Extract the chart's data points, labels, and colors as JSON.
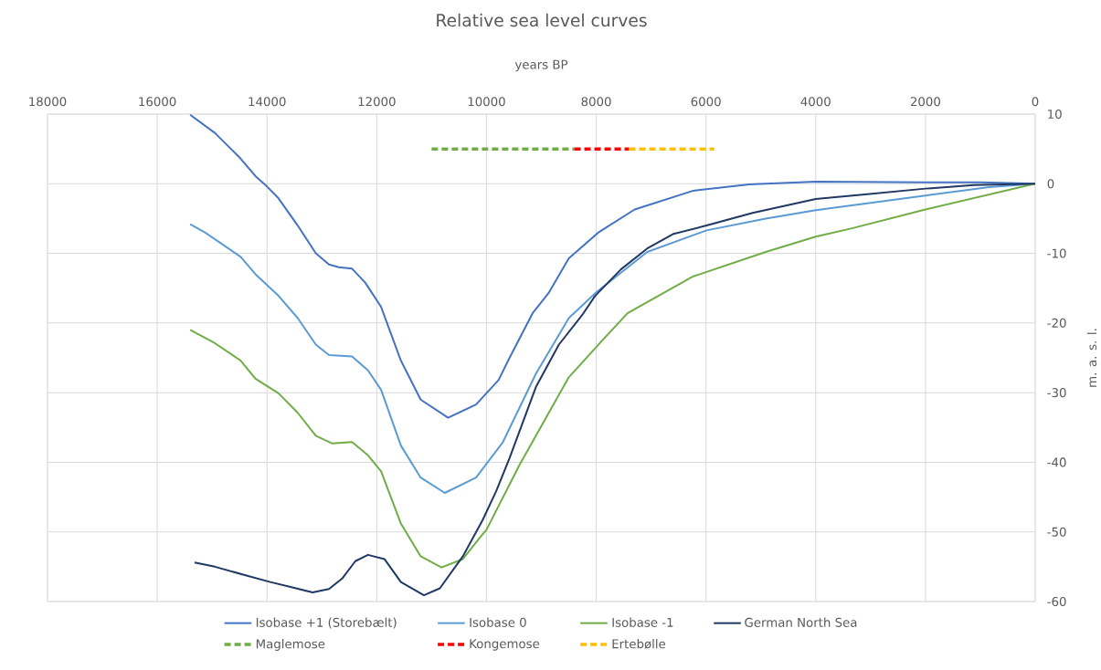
{
  "chart_data": {
    "type": "line",
    "title": "Relative sea level curves",
    "xlabel": "years BP",
    "ylabel": "m. a. s. l.",
    "xlim": [
      18000,
      0
    ],
    "xticks": [
      18000,
      16000,
      14000,
      12000,
      10000,
      8000,
      6000,
      4000,
      2000,
      0
    ],
    "ylim": [
      -60,
      10
    ],
    "yticks": [
      -60,
      -50,
      -40,
      -30,
      -20,
      -10,
      0,
      10
    ],
    "grid": true,
    "legend": "bottom",
    "marker": "none",
    "series": [
      {
        "name": "Isobase +1 (Storebælt)",
        "color": "#4472c4",
        "line_style": "solid",
        "x": [
          15400,
          14950,
          14480,
          14210,
          14000,
          13790,
          13440,
          13110,
          12870,
          12690,
          12450,
          12210,
          11920,
          11560,
          11200,
          10700,
          10190,
          9780,
          9580,
          9160,
          8860,
          8500,
          7960,
          7300,
          6230,
          5210,
          4000,
          2000,
          1000,
          0
        ],
        "values": [
          9.9,
          7.3,
          3.6,
          1.1,
          -0.4,
          -2.1,
          -6.0,
          -10.0,
          -11.6,
          -12.0,
          -12.2,
          -14.2,
          -17.7,
          -25.4,
          -31.0,
          -33.6,
          -31.7,
          -28.2,
          -25.0,
          -18.6,
          -15.6,
          -10.7,
          -7.0,
          -3.7,
          -1.0,
          -0.1,
          0.3,
          0.2,
          0.2,
          0
        ]
      },
      {
        "name": "Isobase 0",
        "color": "#5b9bd5",
        "line_style": "solid",
        "x": [
          15400,
          15130,
          14480,
          14210,
          13790,
          13440,
          13110,
          12870,
          12450,
          12160,
          11920,
          11560,
          11200,
          10760,
          10190,
          9700,
          9100,
          8500,
          8000,
          7070,
          5990,
          4910,
          4000,
          2000,
          840,
          0
        ],
        "values": [
          -5.8,
          -7.0,
          -10.5,
          -13.0,
          -16.1,
          -19.3,
          -23.1,
          -24.6,
          -24.8,
          -26.8,
          -29.6,
          -37.6,
          -42.2,
          -44.4,
          -42.2,
          -37.1,
          -27.3,
          -19.3,
          -15.6,
          -9.8,
          -6.7,
          -5.0,
          -3.8,
          -1.7,
          -0.5,
          0
        ]
      },
      {
        "name": "Isobase -1",
        "color": "#70ad47",
        "line_style": "solid",
        "x": [
          15400,
          14950,
          14480,
          14210,
          13790,
          13440,
          13110,
          12810,
          12450,
          12160,
          11920,
          11560,
          11200,
          10820,
          10430,
          10130,
          10000,
          9400,
          8500,
          7900,
          7430,
          6230,
          4910,
          4000,
          3340,
          2000,
          0
        ],
        "values": [
          -21.0,
          -22.9,
          -25.4,
          -28.0,
          -30.1,
          -32.9,
          -36.2,
          -37.3,
          -37.1,
          -39.0,
          -41.3,
          -48.8,
          -53.5,
          -55.1,
          -53.9,
          -50.9,
          -49.7,
          -40.4,
          -27.8,
          -22.6,
          -18.6,
          -13.3,
          -9.8,
          -7.6,
          -6.4,
          -3.7,
          0
        ]
      },
      {
        "name": "German North Sea",
        "color": "#203864",
        "line_style": "solid",
        "x": [
          15320,
          14950,
          14360,
          13940,
          13520,
          13170,
          12870,
          12630,
          12390,
          12160,
          11860,
          11560,
          11140,
          10850,
          10430,
          10070,
          9820,
          9580,
          9100,
          8680,
          8260,
          8020,
          7550,
          7070,
          6590,
          5990,
          5150,
          4000,
          3060,
          2000,
          1120,
          0
        ],
        "values": [
          -54.4,
          -55.0,
          -56.3,
          -57.2,
          -58.0,
          -58.7,
          -58.2,
          -56.7,
          -54.2,
          -53.3,
          -53.9,
          -57.2,
          -59.1,
          -58.1,
          -53.5,
          -48.3,
          -44.1,
          -39.4,
          -29.2,
          -23.1,
          -18.9,
          -16.1,
          -12.3,
          -9.3,
          -7.2,
          -6.0,
          -4.2,
          -2.2,
          -1.5,
          -0.7,
          -0.2,
          0
        ]
      },
      {
        "name": "Maglemose",
        "color": "#70ad47",
        "line_style": "dashed",
        "x": [
          11000,
          8400
        ],
        "values": [
          5,
          5
        ]
      },
      {
        "name": "Kongemose",
        "color": "#ff0000",
        "line_style": "dashed",
        "x": [
          8400,
          7400
        ],
        "values": [
          5,
          5
        ]
      },
      {
        "name": "Ertebølle",
        "color": "#ffc000",
        "line_style": "dashed",
        "x": [
          7400,
          5850
        ],
        "values": [
          5,
          5
        ]
      }
    ]
  }
}
